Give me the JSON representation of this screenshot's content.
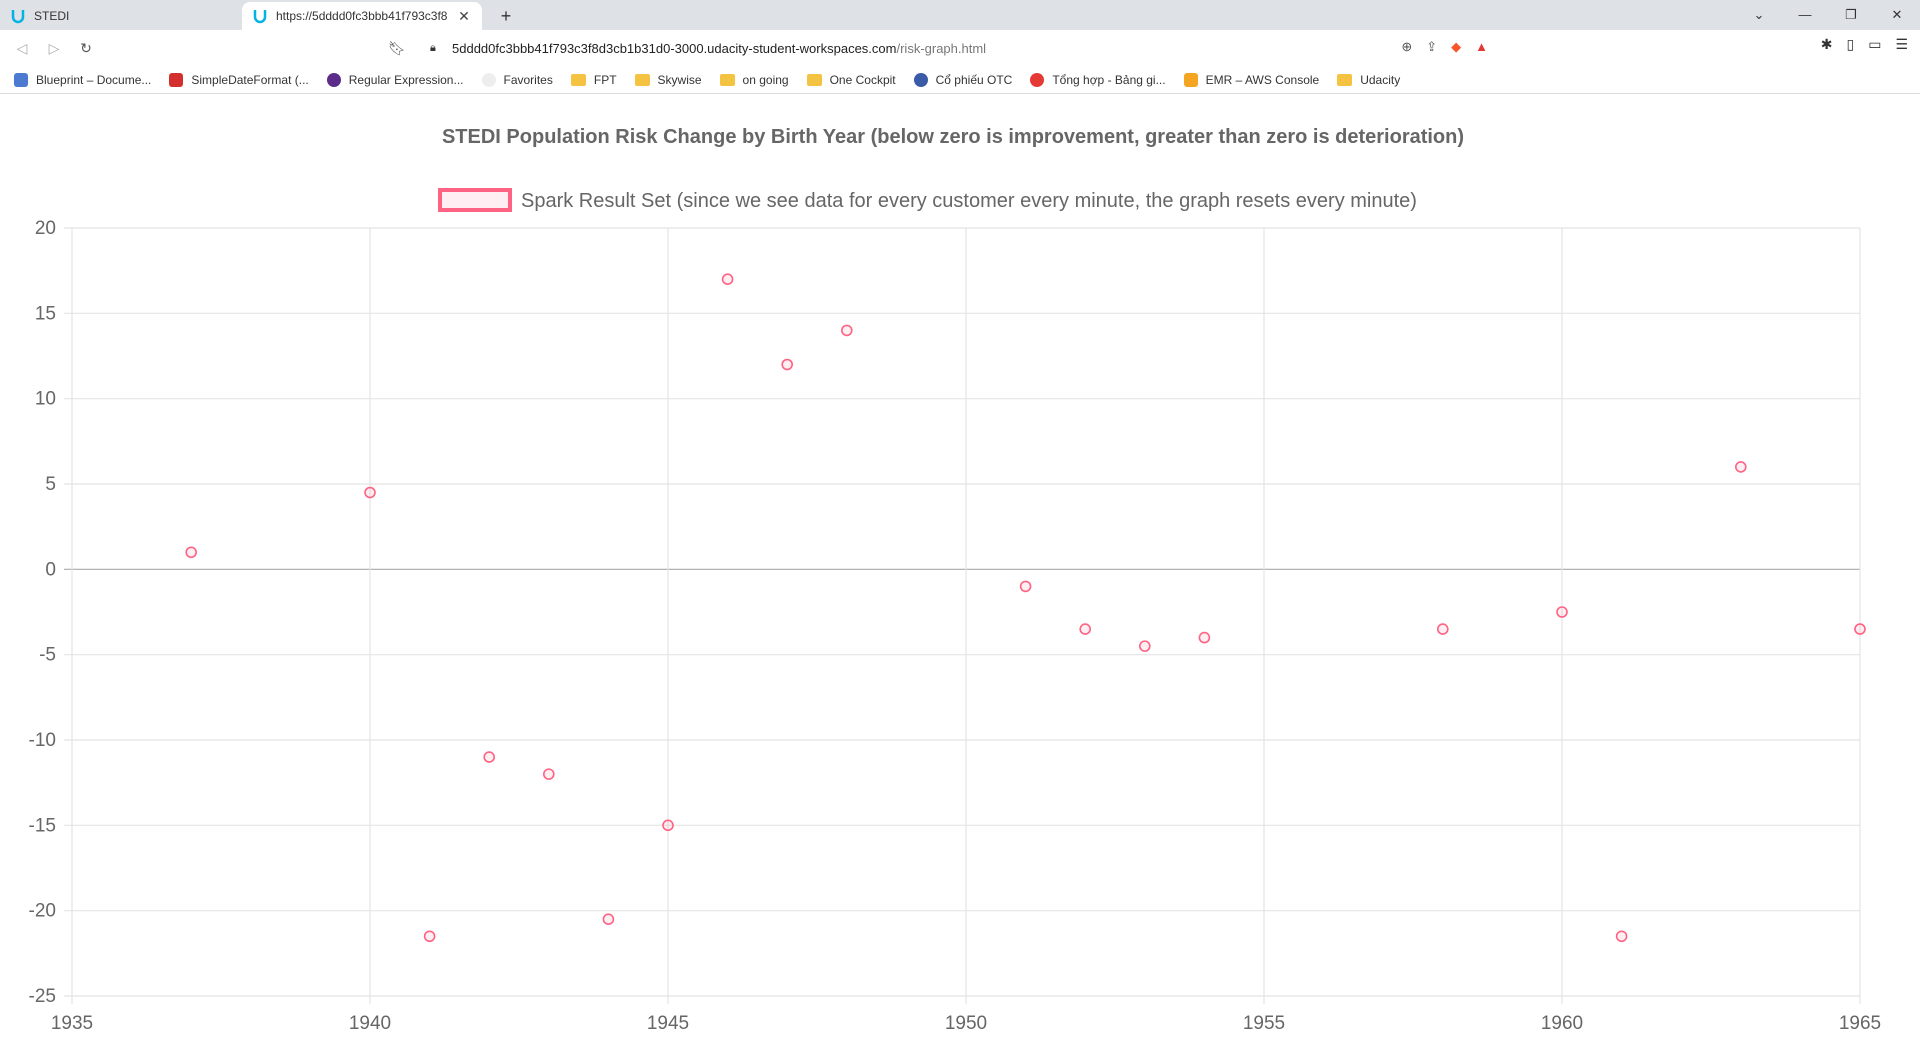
{
  "browser": {
    "tabs": [
      {
        "title": "STEDI",
        "active": false
      },
      {
        "title": "https://5dddd0fc3bbb41f793c3f8",
        "active": true
      }
    ],
    "url_host": "5dddd0fc3bbb41f793c3f8d3cb1b31d0-3000.udacity-student-workspaces.com",
    "url_path": "/risk-graph.html",
    "bookmarks": [
      {
        "label": "Blueprint – Docume...",
        "icon": "blueprint-icon",
        "color": "#4a7bd0"
      },
      {
        "label": "SimpleDateFormat (...",
        "icon": "oracle-icon",
        "color": "#d32f2f"
      },
      {
        "label": "Regular Expression...",
        "icon": "regex-icon",
        "color": "#5b2c8a"
      },
      {
        "label": "Favorites",
        "icon": "favorites-icon",
        "color": "#ffffff"
      },
      {
        "label": "FPT",
        "icon": "folder-icon"
      },
      {
        "label": "Skywise",
        "icon": "folder-icon"
      },
      {
        "label": "on going",
        "icon": "folder-icon"
      },
      {
        "label": "One Cockpit",
        "icon": "folder-icon"
      },
      {
        "label": "Cổ phiếu OTC",
        "icon": "otc-icon",
        "color": "#3b5ba9"
      },
      {
        "label": "Tổng hợp - Bảng gi...",
        "icon": "tonghop-icon",
        "color": "#e53935"
      },
      {
        "label": "EMR – AWS Console",
        "icon": "aws-icon",
        "color": "#f4a623"
      },
      {
        "label": "Udacity",
        "icon": "folder-icon"
      }
    ]
  },
  "chart_data": {
    "type": "scatter",
    "title": "STEDI Population Risk Change by Birth Year (below zero is improvement, greater than zero is deterioration)",
    "series": [
      {
        "name": "Spark Result Set (since we see data for every customer every minute, the graph resets every minute)",
        "color": "#ff6384",
        "x": [
          1937,
          1940,
          1941,
          1942,
          1943,
          1944,
          1945,
          1946,
          1947,
          1948,
          1951,
          1952,
          1953,
          1954,
          1958,
          1960,
          1961,
          1963,
          1965
        ],
        "y": [
          1,
          4.5,
          -21.5,
          -11,
          -12,
          -20.5,
          -15,
          17,
          12,
          14,
          -1,
          -3.5,
          -4.5,
          -4,
          -3.5,
          -2.5,
          -21.5,
          6,
          -3.5
        ]
      }
    ],
    "xlim": [
      1935,
      1965
    ],
    "ylim": [
      -25,
      20
    ],
    "xticks": [
      1935,
      1940,
      1945,
      1950,
      1955,
      1960,
      1965
    ],
    "yticks": [
      20,
      15,
      10,
      5,
      0,
      -5,
      -10,
      -15,
      -20,
      -25
    ],
    "grid": true,
    "legend_position": "top"
  }
}
